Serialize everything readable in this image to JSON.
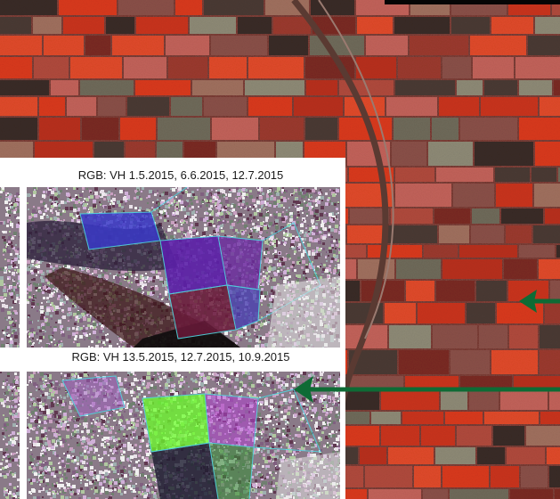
{
  "panel": {
    "titles": [
      "RGB: VH 1.5.2015, 6.6.2015, 12.7.2015",
      "RGB: VH 13.5.2015, 12.7.2015, 10.9.2015"
    ]
  },
  "colors": {
    "arrow": "#0e6b35",
    "field_boundary": "#4fd6e0",
    "panel_background": "#ffffff",
    "field_red": "#d9391f",
    "field_dark": "#3a2b26"
  },
  "arrows": [
    {
      "name": "arrow-upper",
      "direction": "left"
    },
    {
      "name": "arrow-lower",
      "direction": "left"
    }
  ]
}
